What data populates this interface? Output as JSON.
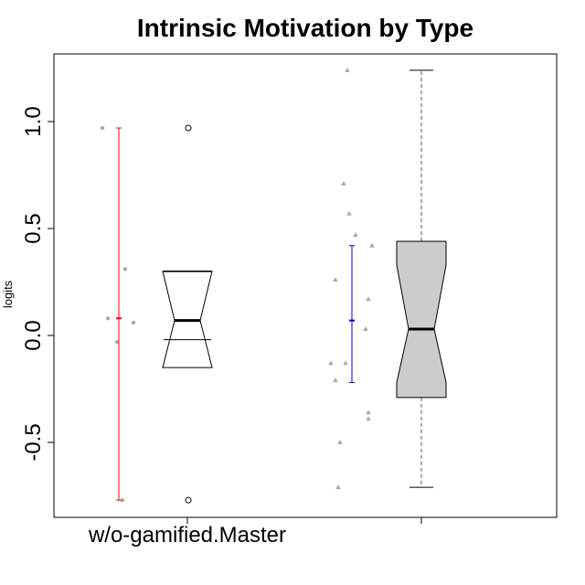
{
  "chart_data": {
    "type": "box",
    "title": "Intrinsic Motivation by Type",
    "xlabel": "",
    "ylabel": "logits",
    "ylim": [
      -0.85,
      1.3
    ],
    "yticks": [
      "-0.5",
      "0.0",
      "0.5",
      "1.0"
    ],
    "ytick_values": [
      -0.5,
      0.0,
      0.5,
      1.0
    ],
    "categories": [
      "w/o-gamified.Master",
      ""
    ],
    "groups": [
      {
        "label": "w/o-gamified.Master",
        "points": [
          0.97,
          0.31,
          0.08,
          0.06,
          -0.03,
          -0.77
        ],
        "box": {
          "q1": -0.02,
          "median": 0.07,
          "q3": 0.3,
          "whisker_low": -0.02,
          "whisker_high": 0.3,
          "notch_low": -0.15,
          "notch_high": 0.3
        },
        "outliers": [
          0.97,
          -0.77
        ],
        "range_line": {
          "low": -0.77,
          "mid": 0.08,
          "high": 0.97,
          "color": "#ff0000"
        },
        "fill": "#ffffff",
        "whisker_style": "none"
      },
      {
        "label": "",
        "points": [
          1.24,
          0.71,
          0.57,
          0.47,
          0.42,
          0.26,
          0.17,
          0.03,
          -0.13,
          -0.13,
          -0.21,
          -0.36,
          -0.39,
          -0.5,
          -0.71
        ],
        "box": {
          "q1": -0.29,
          "median": 0.03,
          "q3": 0.44,
          "whisker_low": -0.71,
          "whisker_high": 1.24,
          "notch_low": -0.22,
          "notch_high": 0.33
        },
        "outliers": [],
        "range_line": {
          "low": -0.22,
          "mid": 0.07,
          "high": 0.42,
          "color": "#0000cc"
        },
        "fill": "#cccccc",
        "whisker_style": "dashed"
      }
    ],
    "grid": false
  }
}
